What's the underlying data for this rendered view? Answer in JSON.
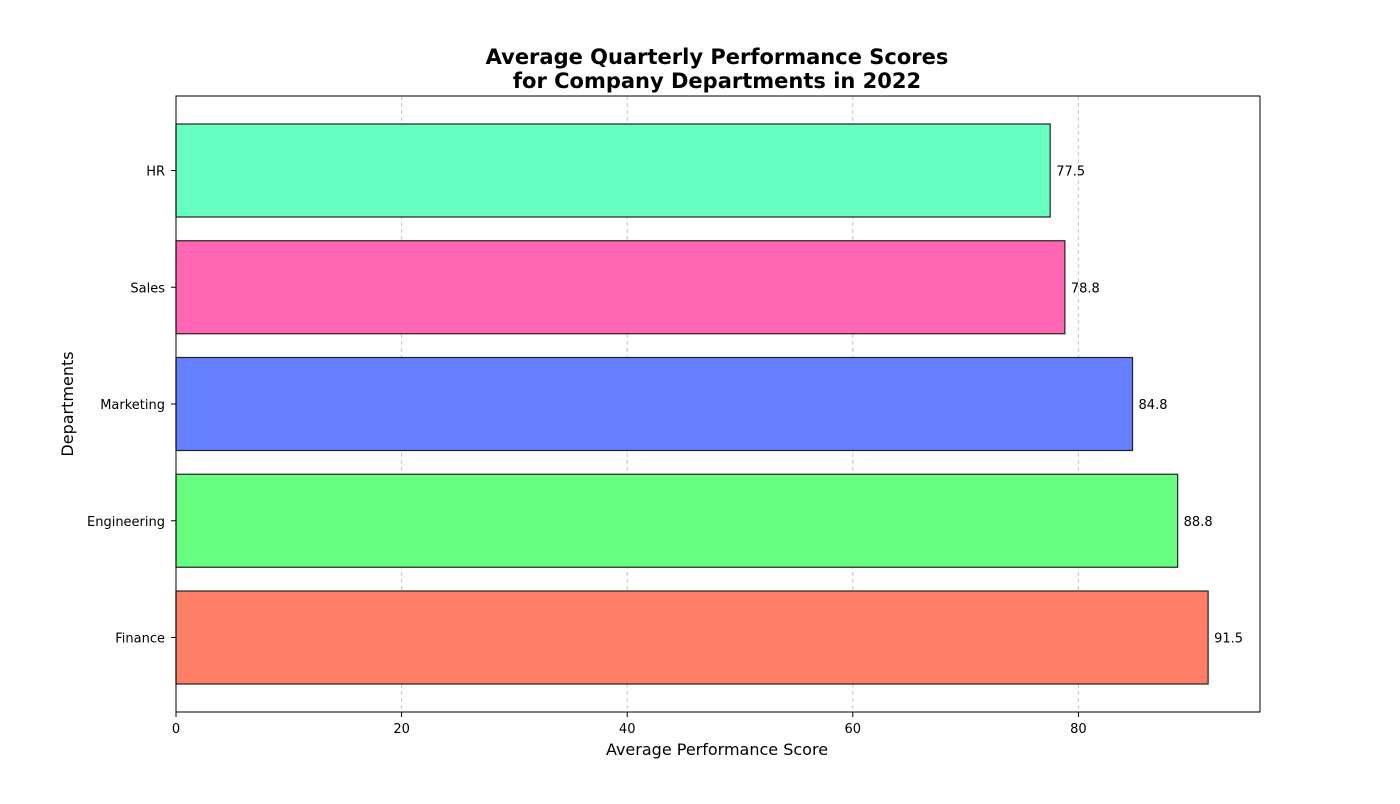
{
  "chart_data": {
    "type": "bar",
    "orientation": "horizontal",
    "title_lines": [
      "Average Quarterly Performance Scores",
      "for Company Departments in 2022"
    ],
    "xlabel": "Average Performance Score",
    "ylabel": "Departments",
    "xlim": [
      0,
      96.1
    ],
    "xticks": [
      0,
      20,
      40,
      60,
      80
    ],
    "grid": "x-axis dashed",
    "categories": [
      "Finance",
      "Engineering",
      "Marketing",
      "Sales",
      "HR"
    ],
    "values": [
      91.5,
      88.8,
      84.8,
      78.8,
      77.5
    ],
    "value_labels": [
      "91.5",
      "88.8",
      "84.8",
      "78.8",
      "77.5"
    ],
    "colors": [
      "#ff7f66",
      "#66ff7f",
      "#667fff",
      "#ff66b3",
      "#66ffbf"
    ]
  }
}
